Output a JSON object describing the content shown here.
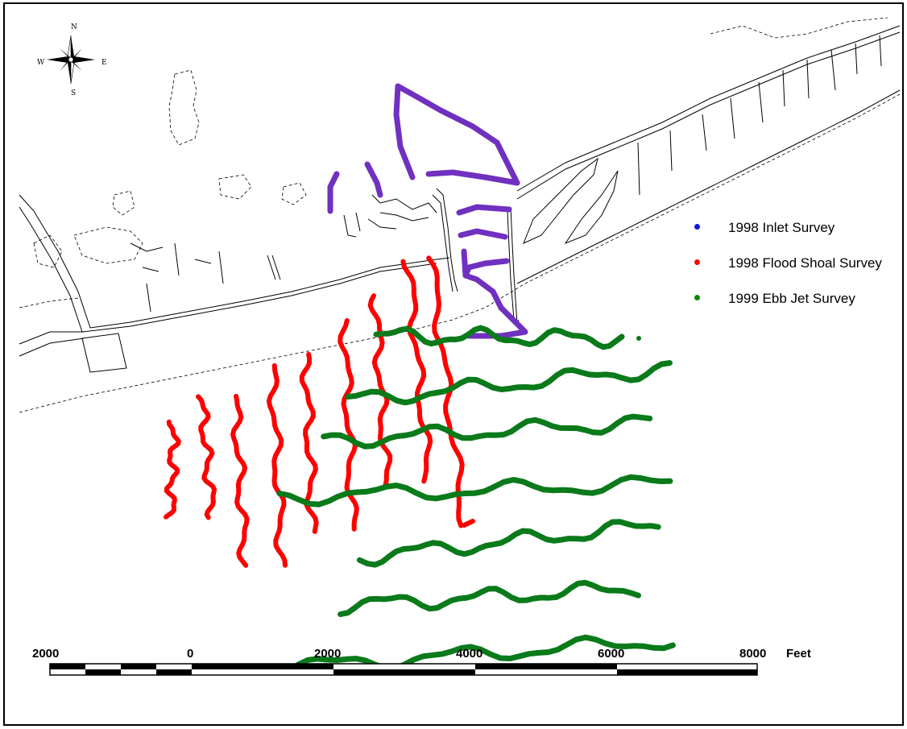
{
  "legend": [
    {
      "label": "1998 Inlet Survey",
      "color": "#1414e0"
    },
    {
      "label": "1998 Flood Shoal Survey",
      "color": "#ff0000"
    },
    {
      "label": "1999 Ebb Jet Survey",
      "color": "#0a8a0a"
    }
  ],
  "scale_bar": {
    "labels": [
      "2000",
      "0",
      "2000",
      "4000",
      "6000",
      "8000"
    ],
    "unit": "Feet"
  },
  "compass": {
    "n": "N",
    "s": "S",
    "e": "E",
    "w": "W"
  },
  "colors": {
    "inlet_track": "#7030c0",
    "flood_track": "#ff0000",
    "ebb_track": "#0a7a1a",
    "coastline": "#000000"
  }
}
